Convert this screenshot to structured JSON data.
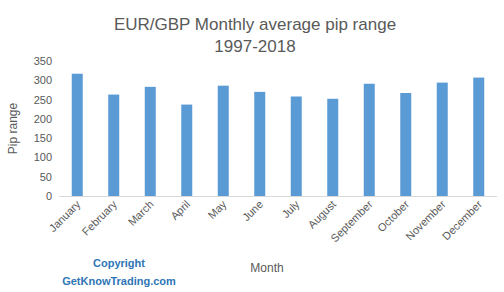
{
  "chart_data": {
    "type": "bar",
    "title": "EUR/GBP Monthly average pip range",
    "subtitle": "1997-2018",
    "x_label": "Month",
    "y_label": "Pip range",
    "annotations": [
      "Copyright",
      "GetKnowTrading.com"
    ],
    "categories": [
      "January",
      "February",
      "March",
      "April",
      "May",
      "June",
      "July",
      "August",
      "September",
      "October",
      "November",
      "December"
    ],
    "values": [
      317,
      263,
      283,
      237,
      286,
      270,
      258,
      252,
      291,
      267,
      294,
      307
    ],
    "color": "#5b9bd5",
    "ylim": [
      0,
      350
    ],
    "yticks": [
      0,
      50,
      100,
      150,
      200,
      250,
      300,
      350
    ],
    "grid": false
  }
}
